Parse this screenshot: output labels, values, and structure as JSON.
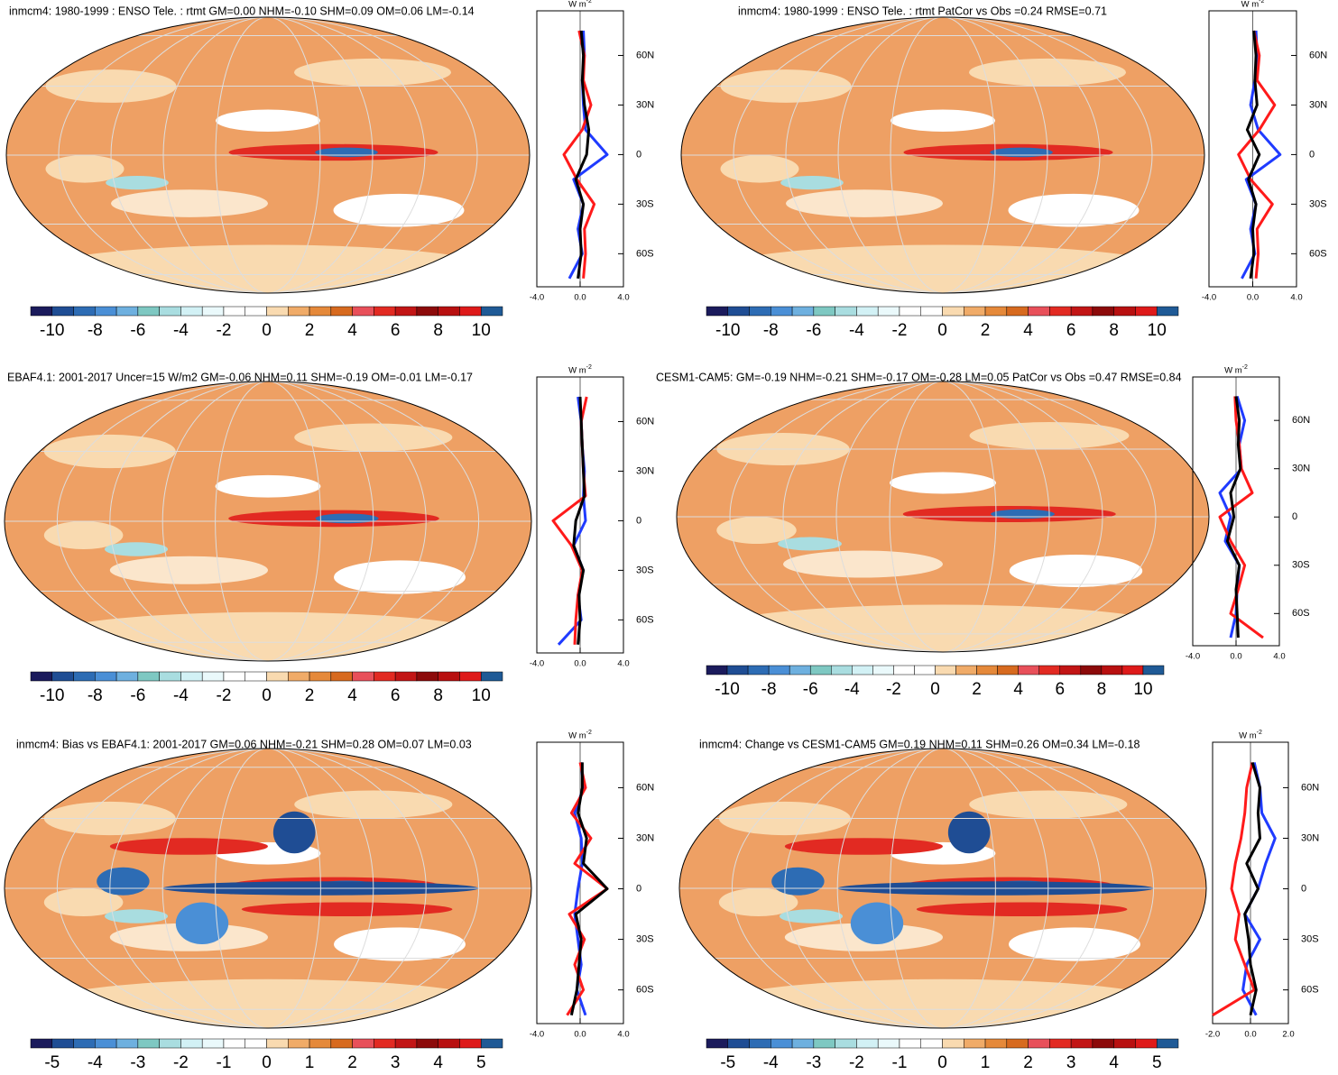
{
  "colorbar_colors": [
    "#1b1b5c",
    "#1f4d94",
    "#2d6cb4",
    "#4a8fd6",
    "#6eb0df",
    "#7ec8c2",
    "#a9dde0",
    "#d2f1f5",
    "#eaf9fb",
    "#ffffff",
    "#ffffff",
    "#f9dab0",
    "#f0ab68",
    "#e5893a",
    "#d76a1f",
    "#e8505a",
    "#e22a22",
    "#c21515",
    "#8c0a0a",
    "#b81010",
    "#de1a1a",
    "#1f5a96"
  ],
  "panels": [
    {
      "title": "inmcm4: 1980-1999 : ENSO Tele. : rtmt GM=0.00 NHM=-0.10 SHM=0.09 OM=0.06 LM=-0.14",
      "colorbar": {
        "lim": [
          -11,
          11
        ],
        "ticks": [
          -10,
          -8,
          -6,
          -4,
          -2,
          0,
          2,
          4,
          6,
          8,
          10
        ]
      },
      "profile": {
        "unit": "W m",
        "unit_sup": "-2",
        "xlim": [
          -4,
          4
        ],
        "xticks": [
          {
            "value": -4,
            "label": "-4.0"
          },
          {
            "value": 0,
            "label": "0.0"
          },
          {
            "value": 4,
            "label": "4.0"
          }
        ],
        "ylim": [
          -80,
          87
        ],
        "yticks": [
          {
            "value": 60,
            "label": "60N"
          },
          {
            "value": 30,
            "label": "30N"
          },
          0,
          {
            "value": -30,
            "label": "30S"
          },
          {
            "value": -60,
            "label": "60S"
          }
        ],
        "lat": [
          -75,
          -60,
          -45,
          -30,
          -15,
          0,
          15,
          30,
          45,
          60,
          75
        ],
        "series": [
          {
            "color": "#1f3bff",
            "values": [
              -1.0,
              0.2,
              -0.2,
              0.3,
              -0.6,
              2.5,
              0.5,
              0.3,
              0.2,
              0.4,
              0.3
            ]
          },
          {
            "color": "#ff1a1a",
            "values": [
              0.3,
              0.5,
              0.4,
              1.3,
              -0.3,
              -1.5,
              0.2,
              1.0,
              0.3,
              0.4,
              -0.1
            ]
          },
          {
            "color": "#000000",
            "values": [
              -0.2,
              0.1,
              0.0,
              0.3,
              -0.4,
              0.6,
              0.8,
              0.4,
              0.2,
              0.3,
              0.1
            ]
          }
        ]
      }
    },
    {
      "title": "inmcm4: 1980-1999 : ENSO Tele. : rtmt PatCor vs Obs =0.24 RMSE=0.71",
      "colorbar": {
        "lim": [
          -11,
          11
        ],
        "ticks": [
          -10,
          -8,
          -6,
          -4,
          -2,
          0,
          2,
          4,
          6,
          8,
          10
        ]
      },
      "profile": {
        "unit": "W m",
        "unit_sup": "-2",
        "xlim": [
          -4,
          4
        ],
        "xticks": [
          {
            "value": -4,
            "label": "-4.0"
          },
          {
            "value": 0,
            "label": "0.0"
          },
          {
            "value": 4,
            "label": "4.0"
          }
        ],
        "ylim": [
          -80,
          87
        ],
        "yticks": [
          {
            "value": 60,
            "label": "60N"
          },
          {
            "value": 30,
            "label": "30N"
          },
          0,
          {
            "value": -30,
            "label": "30S"
          },
          {
            "value": -60,
            "label": "60S"
          }
        ],
        "lat": [
          -75,
          -60,
          -45,
          -30,
          -15,
          0,
          15,
          30,
          45,
          60,
          75
        ],
        "series": [
          {
            "color": "#1f3bff",
            "values": [
              -1.0,
              0.2,
              -0.2,
              0.3,
              -0.6,
              2.5,
              0.5,
              -0.2,
              0.2,
              0.4,
              0.3
            ]
          },
          {
            "color": "#ff1a1a",
            "values": [
              0.3,
              0.5,
              0.4,
              1.8,
              -0.2,
              -1.3,
              0.6,
              2.0,
              0.4,
              0.6,
              0.1
            ]
          },
          {
            "color": "#000000",
            "values": [
              -0.2,
              0.1,
              0.0,
              0.3,
              -0.4,
              0.6,
              -0.5,
              0.4,
              0.2,
              0.3,
              0.1
            ]
          }
        ]
      }
    },
    {
      "title": "EBAF4.1: 2001-2017 Uncer=15 W/m2 GM=-0.06 NHM=0.11 SHM=-0.19 OM=-0.01 LM=-0.17",
      "colorbar": {
        "lim": [
          -11,
          11
        ],
        "ticks": [
          -10,
          -8,
          -6,
          -4,
          -2,
          0,
          2,
          4,
          6,
          8,
          10
        ]
      },
      "profile": {
        "unit": "W m",
        "unit_sup": "-2",
        "xlim": [
          -4,
          4
        ],
        "xticks": [
          {
            "value": -4,
            "label": "-4.0"
          },
          {
            "value": 0,
            "label": "0.0"
          },
          {
            "value": 4,
            "label": "4.0"
          }
        ],
        "ylim": [
          -80,
          87
        ],
        "yticks": [
          {
            "value": 60,
            "label": "60N"
          },
          {
            "value": 30,
            "label": "30N"
          },
          0,
          {
            "value": -30,
            "label": "30S"
          },
          {
            "value": -60,
            "label": "60S"
          }
        ],
        "lat": [
          -75,
          -60,
          -45,
          -30,
          -15,
          0,
          15,
          30,
          45,
          60,
          75
        ],
        "series": [
          {
            "color": "#1f3bff",
            "values": [
              -2.0,
              0.1,
              -0.2,
              0.3,
              -0.6,
              0.5,
              0.3,
              0.4,
              0.2,
              0.1,
              -0.2
            ]
          },
          {
            "color": "#ff1a1a",
            "values": [
              -0.5,
              -0.4,
              -0.2,
              0.2,
              -0.8,
              -2.5,
              0.5,
              0.3,
              0.2,
              0.1,
              0.6
            ]
          },
          {
            "color": "#000000",
            "values": [
              -0.2,
              0.0,
              -0.1,
              0.3,
              -0.6,
              -0.4,
              0.4,
              0.3,
              0.2,
              0.1,
              0.0
            ]
          }
        ]
      }
    },
    {
      "title": "CESM1-CAM5: GM=-0.19 NHM=-0.21 SHM=-0.17 OM=-0.28 LM=0.05 PatCor vs Obs =0.47 RMSE=0.84",
      "colorbar": {
        "lim": [
          -11,
          11
        ],
        "ticks": [
          -10,
          -8,
          -6,
          -4,
          -2,
          0,
          2,
          4,
          6,
          8,
          10
        ]
      },
      "profile": {
        "unit": "W m",
        "unit_sup": "-2",
        "xlim": [
          -4,
          4
        ],
        "xticks": [
          {
            "value": -4,
            "label": "-4.0"
          },
          {
            "value": 0,
            "label": "0.0"
          },
          {
            "value": 4,
            "label": "4.0"
          }
        ],
        "ylim": [
          -80,
          87
        ],
        "yticks": [
          {
            "value": 60,
            "label": "60N"
          },
          {
            "value": 30,
            "label": "30N"
          },
          0,
          {
            "value": -30,
            "label": "30S"
          },
          {
            "value": -60,
            "label": "60S"
          }
        ],
        "lat": [
          -75,
          -60,
          -45,
          -30,
          -15,
          0,
          15,
          30,
          45,
          60,
          75
        ],
        "series": [
          {
            "color": "#1f3bff",
            "values": [
              -0.5,
              0.0,
              0.1,
              0.3,
              -1.0,
              -0.5,
              -1.5,
              0.5,
              0.3,
              0.8,
              0.1
            ]
          },
          {
            "color": "#ff1a1a",
            "values": [
              2.5,
              -0.5,
              0.2,
              0.8,
              -0.5,
              -1.5,
              1.5,
              0.5,
              0.3,
              0.0,
              -0.1
            ]
          },
          {
            "color": "#000000",
            "values": [
              0.2,
              0.1,
              0.0,
              0.3,
              -0.8,
              -0.2,
              -0.5,
              0.4,
              0.2,
              0.3,
              0.0
            ]
          }
        ]
      }
    },
    {
      "title": "inmcm4: Bias vs EBAF4.1: 2001-2017 GM=0.06 NHM=-0.21 SHM=0.28 OM=0.07 LM=0.03",
      "colorbar": {
        "lim": [
          -5.5,
          5.5
        ],
        "ticks": [
          -5,
          -4,
          -3,
          -2,
          -1,
          0,
          1,
          2,
          3,
          4,
          5
        ]
      },
      "profile": {
        "unit": "W m",
        "unit_sup": "-2",
        "xlim": [
          -4,
          4
        ],
        "xticks": [
          {
            "value": -4,
            "label": "-4.0"
          },
          {
            "value": 0,
            "label": "0.0"
          },
          {
            "value": 4,
            "label": "4.0"
          }
        ],
        "ylim": [
          -80,
          87
        ],
        "yticks": [
          {
            "value": 60,
            "label": "60N"
          },
          {
            "value": 30,
            "label": "30N"
          },
          0,
          {
            "value": -30,
            "label": "30S"
          },
          {
            "value": -60,
            "label": "60S"
          }
        ],
        "lat": [
          -75,
          -60,
          -45,
          -30,
          -15,
          0,
          15,
          30,
          45,
          60,
          75
        ],
        "series": [
          {
            "color": "#1f3bff",
            "values": [
              0.5,
              -0.3,
              0.1,
              -0.2,
              -0.5,
              -0.2,
              0.2,
              0.1,
              -0.5,
              0.3,
              0.1
            ]
          },
          {
            "color": "#ff1a1a",
            "values": [
              -1.2,
              0.3,
              -0.5,
              0.4,
              -1.0,
              2.5,
              -0.5,
              1.0,
              -0.8,
              0.5,
              0.0
            ]
          },
          {
            "color": "#000000",
            "values": [
              -0.8,
              -0.3,
              -0.1,
              0.1,
              -0.4,
              2.5,
              0.3,
              0.6,
              -0.2,
              0.2,
              0.2
            ]
          }
        ]
      }
    },
    {
      "title": "inmcm4: Change vs CESM1-CAM5 GM=0.19 NHM=0.11 SHM=0.26 OM=0.34 LM=-0.18",
      "colorbar": {
        "lim": [
          -5.5,
          5.5
        ],
        "ticks": [
          -5,
          -4,
          -3,
          -2,
          -1,
          0,
          1,
          2,
          3,
          4,
          5
        ]
      },
      "profile": {
        "unit": "W m",
        "unit_sup": "-2",
        "xlim": [
          -2,
          2
        ],
        "xticks": [
          {
            "value": -2,
            "label": "-2.0"
          },
          {
            "value": 0,
            "label": "0.0"
          },
          {
            "value": 2,
            "label": "2.0"
          }
        ],
        "ylim": [
          -80,
          87
        ],
        "yticks": [
          {
            "value": 60,
            "label": "60N"
          },
          {
            "value": 30,
            "label": "30N"
          },
          0,
          {
            "value": -30,
            "label": "30S"
          },
          {
            "value": -60,
            "label": "60S"
          }
        ],
        "lat": [
          -75,
          -60,
          -45,
          -30,
          -15,
          0,
          15,
          30,
          45,
          60,
          75
        ],
        "series": [
          {
            "color": "#1f3bff",
            "values": [
              0.3,
              -0.4,
              -0.2,
              0.5,
              -0.3,
              0.4,
              0.8,
              1.3,
              0.6,
              0.5,
              0.2
            ]
          },
          {
            "color": "#ff1a1a",
            "values": [
              -2.0,
              0.2,
              -0.3,
              -0.8,
              -0.6,
              -1.0,
              -0.8,
              -0.5,
              -0.3,
              -0.2,
              0.1
            ]
          },
          {
            "color": "#000000",
            "values": [
              0.0,
              0.3,
              0.0,
              -0.1,
              -0.3,
              0.4,
              -0.2,
              0.5,
              0.4,
              0.5,
              0.1
            ]
          }
        ]
      }
    }
  ]
}
